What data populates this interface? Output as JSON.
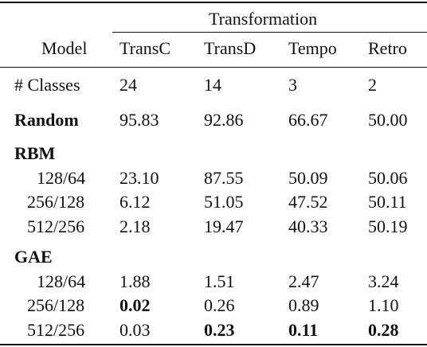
{
  "table": {
    "group_header": "Transformation",
    "model_header": "Model",
    "columns": [
      "TransC",
      "TransD",
      "Tempo",
      "Retro"
    ],
    "classes_row": {
      "label": "# Classes",
      "values": [
        "24",
        "14",
        "3",
        "2"
      ]
    },
    "random_row": {
      "label": "Random",
      "values": [
        "95.83",
        "92.86",
        "66.67",
        "50.00"
      ]
    },
    "rbm": {
      "label": "RBM",
      "rows": [
        {
          "label": "128/64",
          "values": [
            "23.10",
            "87.55",
            "50.09",
            "50.06"
          ]
        },
        {
          "label": "256/128",
          "values": [
            "6.12",
            "51.05",
            "47.52",
            "50.11"
          ]
        },
        {
          "label": "512/256",
          "values": [
            "2.18",
            "19.47",
            "40.33",
            "50.19"
          ]
        }
      ]
    },
    "gae": {
      "label": "GAE",
      "rows": [
        {
          "label": "128/64",
          "values": [
            "1.88",
            "1.51",
            "2.47",
            "3.24"
          ]
        },
        {
          "label": "256/128",
          "values": [
            "0.02",
            "0.26",
            "0.89",
            "1.10"
          ]
        },
        {
          "label": "512/256",
          "values": [
            "0.03",
            "0.23",
            "0.11",
            "0.28"
          ]
        }
      ]
    }
  }
}
